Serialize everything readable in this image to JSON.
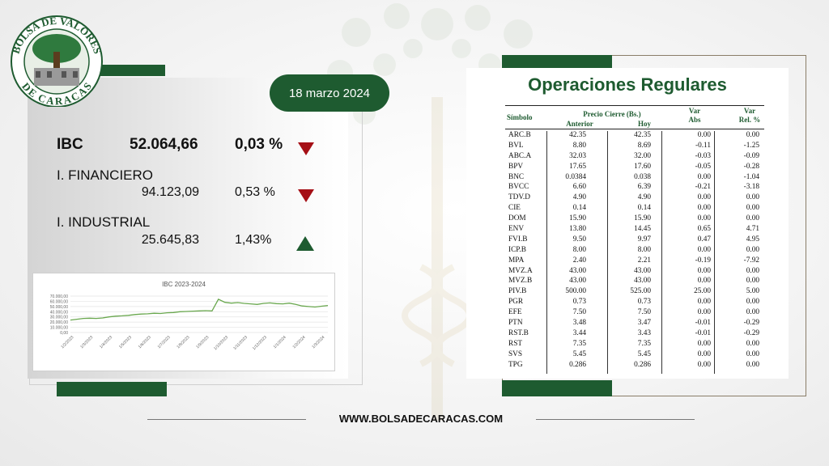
{
  "logo": {
    "top_text": "BOLSA DE VALORES",
    "bottom_text": "DE CARACAS"
  },
  "date": "18 marzo 2024",
  "indices": {
    "ibc": {
      "name": "IBC",
      "value": "52.064,66",
      "pct": "0,03 %",
      "direction": "down"
    },
    "financiero": {
      "name": "I. FINANCIERO",
      "value": "94.123,09",
      "pct": "0,53 %",
      "direction": "down"
    },
    "industrial": {
      "name": "I. INDUSTRIAL",
      "value": "25.645,83",
      "pct": "1,43%",
      "direction": "up"
    }
  },
  "colors": {
    "brand_green": "#1e5b30",
    "down_red": "#a50f16",
    "line_green": "#6aa84f"
  },
  "chart_data": {
    "type": "line",
    "title": "IBC 2023-2024",
    "y_ticks": [
      "70.000,00",
      "60.000,00",
      "50.000,00",
      "40.000,00",
      "30.000,00",
      "20.000,00",
      "10.000,00",
      "0,00"
    ],
    "ylim": [
      0,
      70000
    ],
    "x_ticks": [
      "1/2/2023",
      "1/3/2023",
      "1/4/2023",
      "1/5/2023",
      "1/6/2023",
      "1/7/2023",
      "1/8/2023",
      "1/9/2023",
      "1/10/2023",
      "1/11/2023",
      "1/12/2023",
      "1/1/2024",
      "1/2/2024",
      "1/3/2024"
    ],
    "grid": true,
    "series": [
      {
        "values": [
          24000,
          25500,
          27000,
          27500,
          27000,
          28000,
          30000,
          31500,
          32000,
          33000,
          34500,
          35500,
          36000,
          37000,
          36500,
          38000,
          38500,
          40000,
          40500,
          41000,
          41500,
          42000,
          41500,
          64000,
          58000,
          56500,
          57500,
          56000,
          55000,
          54000,
          56000,
          57000,
          55500,
          55000,
          56500,
          54000,
          51000,
          50000,
          49000,
          50500,
          52000
        ]
      }
    ]
  },
  "table": {
    "title": "Operaciones Regulares",
    "headers": {
      "simbolo": "Símbolo",
      "precio_cierre": "Precio Cierre (Bs.)",
      "anterior": "Anterior",
      "hoy": "Hoy",
      "var1": "Var",
      "abs": "Abs",
      "var2": "Var",
      "rel": "Rel. %"
    },
    "rows": [
      [
        "ARC.B",
        "42.35",
        "42.35",
        "0.00",
        "0.00"
      ],
      [
        "BVL",
        "8.80",
        "8.69",
        "-0.11",
        "-1.25"
      ],
      [
        "ABC.A",
        "32.03",
        "32.00",
        "-0.03",
        "-0.09"
      ],
      [
        "BPV",
        "17.65",
        "17.60",
        "-0.05",
        "-0.28"
      ],
      [
        "BNC",
        "0.0384",
        "0.038",
        "0.00",
        "-1.04"
      ],
      [
        "BVCC",
        "6.60",
        "6.39",
        "-0.21",
        "-3.18"
      ],
      [
        "TDV.D",
        "4.90",
        "4.90",
        "0.00",
        "0.00"
      ],
      [
        "CIE",
        "0.14",
        "0.14",
        "0.00",
        "0.00"
      ],
      [
        "DOM",
        "15.90",
        "15.90",
        "0.00",
        "0.00"
      ],
      [
        "ENV",
        "13.80",
        "14.45",
        "0.65",
        "4.71"
      ],
      [
        "FVI.B",
        "9.50",
        "9.97",
        "0.47",
        "4.95"
      ],
      [
        "ICP.B",
        "8.00",
        "8.00",
        "0.00",
        "0.00"
      ],
      [
        "MPA",
        "2.40",
        "2.21",
        "-0.19",
        "-7.92"
      ],
      [
        "MVZ.A",
        "43.00",
        "43.00",
        "0.00",
        "0.00"
      ],
      [
        "MVZ.B",
        "43.00",
        "43.00",
        "0.00",
        "0.00"
      ],
      [
        "PIV.B",
        "500.00",
        "525.00",
        "25.00",
        "5.00"
      ],
      [
        "PGR",
        "0.73",
        "0.73",
        "0.00",
        "0.00"
      ],
      [
        "EFE",
        "7.50",
        "7.50",
        "0.00",
        "0.00"
      ],
      [
        "PTN",
        "3.48",
        "3.47",
        "-0.01",
        "-0.29"
      ],
      [
        "RST.B",
        "3.44",
        "3.43",
        "-0.01",
        "-0.29"
      ],
      [
        "RST",
        "7.35",
        "7.35",
        "0.00",
        "0.00"
      ],
      [
        "SVS",
        "5.45",
        "5.45",
        "0.00",
        "0.00"
      ],
      [
        "TPG",
        "0.286",
        "0.286",
        "0.00",
        "0.00"
      ]
    ]
  },
  "footer": {
    "url": "WWW.BOLSADECARACAS.COM"
  }
}
